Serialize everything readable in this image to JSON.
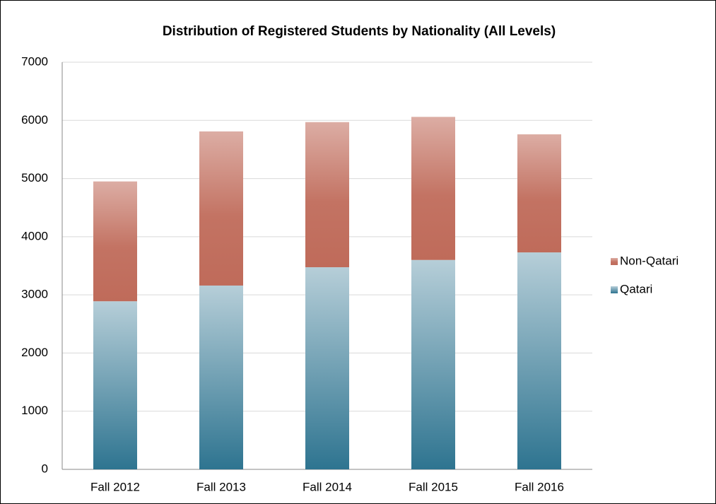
{
  "chart_data": {
    "type": "stacked_bar",
    "title": "Distribution of Registered Students by Nationality (All Levels)",
    "categories": [
      "Fall 2012",
      "Fall 2013",
      "Fall 2014",
      "Fall 2015",
      "Fall 2016"
    ],
    "series": [
      {
        "name": "Qatari",
        "color": "#2e7490",
        "values": [
          2890,
          3160,
          3475,
          3600,
          3730
        ]
      },
      {
        "name": "Non-Qatari",
        "color": "#b85a48",
        "values": [
          2060,
          2650,
          2495,
          2460,
          2030
        ]
      }
    ],
    "ylim": [
      0,
      7000
    ],
    "yticks": [
      0,
      1000,
      2000,
      3000,
      4000,
      5000,
      6000,
      7000
    ],
    "grid": true,
    "legend": "right"
  }
}
